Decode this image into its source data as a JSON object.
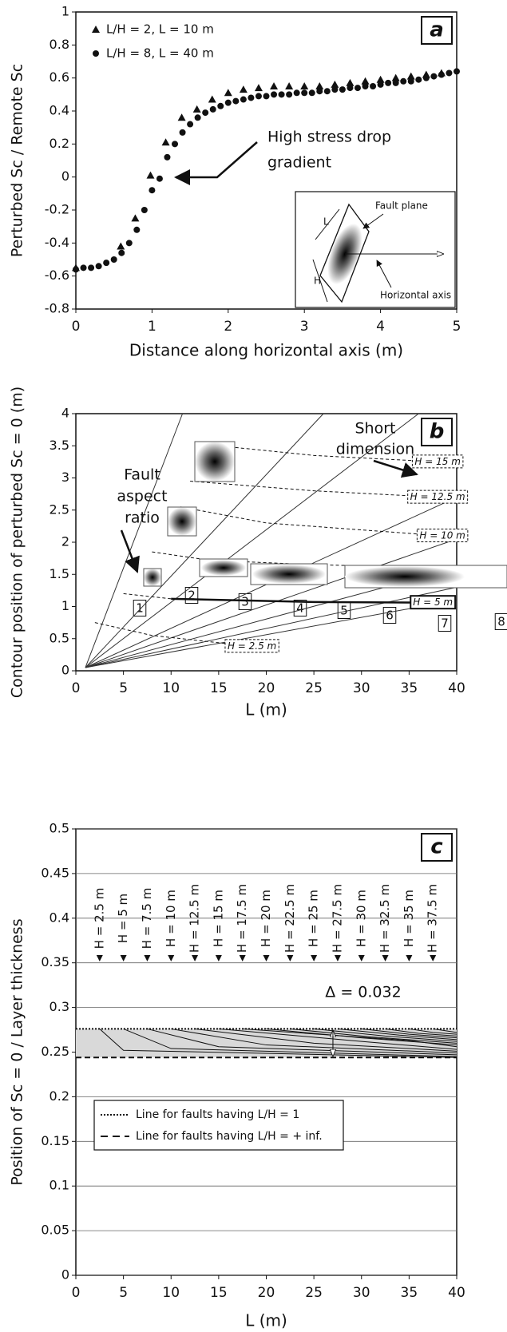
{
  "chart_data": [
    {
      "type": "scatter",
      "panel_label": "a",
      "x_label": "Distance along horizontal axis (m)",
      "y_label": "Perturbed Sc / Remote Sc",
      "xlim": [
        0,
        5
      ],
      "xticks": [
        0,
        1,
        2,
        3,
        4,
        5
      ],
      "ylim": [
        -0.8,
        1
      ],
      "yticks": [
        -0.8,
        -0.6,
        -0.4,
        -0.2,
        0,
        0.2,
        0.4,
        0.6,
        0.8,
        1
      ],
      "grid": false,
      "series": [
        {
          "name": "L/H = 2, L = 10 m",
          "marker": "triangle",
          "color": "#111111",
          "x": [
            0.0,
            0.59,
            0.78,
            0.98,
            1.18,
            1.39,
            1.59,
            1.79,
            2.0,
            2.2,
            2.4,
            2.6,
            2.8,
            3.0,
            3.2,
            3.4,
            3.6,
            3.8,
            4.0,
            4.2,
            4.4,
            4.6,
            4.8
          ],
          "values": [
            -0.55,
            -0.42,
            -0.25,
            0.01,
            0.21,
            0.36,
            0.41,
            0.47,
            0.51,
            0.53,
            0.54,
            0.55,
            0.55,
            0.55,
            0.55,
            0.56,
            0.57,
            0.58,
            0.59,
            0.6,
            0.61,
            0.62,
            0.63
          ]
        },
        {
          "name": "L/H = 8, L = 40 m",
          "marker": "circle",
          "color": "#111111",
          "x": [
            0,
            0.1,
            0.2,
            0.3,
            0.4,
            0.5,
            0.6,
            0.7,
            0.8,
            0.9,
            1.0,
            1.1,
            1.2,
            1.3,
            1.4,
            1.5,
            1.6,
            1.7,
            1.8,
            1.9,
            2.0,
            2.1,
            2.2,
            2.3,
            2.4,
            2.5,
            2.6,
            2.7,
            2.8,
            2.9,
            3.0,
            3.1,
            3.2,
            3.3,
            3.4,
            3.5,
            3.6,
            3.7,
            3.8,
            3.9,
            4.0,
            4.1,
            4.2,
            4.3,
            4.4,
            4.5,
            4.6,
            4.7,
            4.8,
            4.9,
            5.0
          ],
          "values": [
            -0.56,
            -0.55,
            -0.55,
            -0.54,
            -0.52,
            -0.5,
            -0.46,
            -0.4,
            -0.32,
            -0.2,
            -0.08,
            -0.01,
            0.12,
            0.2,
            0.27,
            0.32,
            0.36,
            0.39,
            0.41,
            0.43,
            0.45,
            0.46,
            0.47,
            0.48,
            0.49,
            0.49,
            0.5,
            0.5,
            0.5,
            0.51,
            0.51,
            0.51,
            0.52,
            0.52,
            0.53,
            0.53,
            0.54,
            0.54,
            0.55,
            0.55,
            0.56,
            0.57,
            0.57,
            0.58,
            0.58,
            0.59,
            0.6,
            0.61,
            0.62,
            0.63,
            0.64
          ]
        }
      ],
      "annotation": [
        "High stress drop",
        "gradient"
      ],
      "inset_labels": [
        "Fault plane",
        "Horizontal axis",
        "L",
        "H"
      ]
    },
    {
      "type": "line",
      "panel_label": "b",
      "x_label": "L (m)",
      "y_label": "Contour position of perturbed Sc = 0 (m)",
      "xlim": [
        0,
        40
      ],
      "xticks": [
        0,
        5,
        10,
        15,
        20,
        25,
        30,
        35,
        40
      ],
      "ylim": [
        0,
        4
      ],
      "yticks": [
        0,
        0.5,
        1,
        1.5,
        2,
        2.5,
        3,
        3.5,
        4
      ],
      "grid": false,
      "series": [
        {
          "name": "1",
          "color": "#333333",
          "x": [
            1,
            11.2
          ],
          "values": [
            0.05,
            4
          ]
        },
        {
          "name": "2",
          "color": "#333333",
          "x": [
            1,
            26
          ],
          "values": [
            0.05,
            4
          ]
        },
        {
          "name": "3",
          "color": "#333333",
          "x": [
            1,
            36
          ],
          "values": [
            0.05,
            4
          ]
        },
        {
          "name": "4",
          "color": "#333333",
          "x": [
            1,
            40
          ],
          "values": [
            0.05,
            2.7
          ]
        },
        {
          "name": "5",
          "color": "#333333",
          "x": [
            1,
            40
          ],
          "values": [
            0.05,
            2.05
          ]
        },
        {
          "name": "6",
          "color": "#333333",
          "x": [
            1,
            40
          ],
          "values": [
            0.05,
            1.6
          ]
        },
        {
          "name": "7",
          "color": "#333333",
          "x": [
            1,
            40
          ],
          "values": [
            0.05,
            1.3
          ]
        },
        {
          "name": "8",
          "color": "#333333",
          "x": [
            1,
            40
          ],
          "values": [
            0.05,
            1.1
          ]
        }
      ],
      "contours": [
        {
          "label": "H = 2.5 m",
          "style": "dashed",
          "x": [
            2,
            8,
            18.5
          ],
          "values": [
            0.75,
            0.55,
            0.38
          ]
        },
        {
          "style": "dashed",
          "x": [
            5,
            10
          ],
          "values": [
            1.2,
            1.12
          ]
        },
        {
          "label": "H = 5 m",
          "style": "solid",
          "x": [
            10,
            25,
            37.5
          ],
          "values": [
            1.12,
            1.07,
            1.06
          ]
        },
        {
          "style": "dashed",
          "x": [
            8,
            14,
            25,
            40
          ],
          "values": [
            1.85,
            1.72,
            1.65,
            1.6
          ]
        },
        {
          "label": "H = 10 m",
          "style": "dashed",
          "x": [
            11,
            20,
            38.5
          ],
          "values": [
            2.55,
            2.3,
            2.1
          ]
        },
        {
          "label": "H = 12.5 m",
          "style": "dashed",
          "x": [
            12,
            25,
            38
          ],
          "values": [
            2.95,
            2.8,
            2.7
          ]
        },
        {
          "label": "H = 15 m",
          "style": "dashed",
          "x": [
            15,
            25,
            38
          ],
          "values": [
            3.5,
            3.35,
            3.25
          ]
        }
      ],
      "annotations": [
        [
          "Short",
          "dimension"
        ],
        [
          "Fault",
          "aspect",
          "ratio"
        ]
      ]
    },
    {
      "type": "line",
      "panel_label": "c",
      "x_label": "L (m)",
      "y_label": "Position of Sc = 0 / Layer thickness",
      "xlim": [
        0,
        40
      ],
      "xticks": [
        0,
        5,
        10,
        15,
        20,
        25,
        30,
        35,
        40
      ],
      "ylim": [
        0,
        0.5
      ],
      "yticks": [
        0,
        0.05,
        0.1,
        0.15,
        0.2,
        0.25,
        0.3,
        0.35,
        0.4,
        0.45,
        0.5
      ],
      "grid": true,
      "curves": [
        {
          "name": "H = 2.5 m",
          "x": [
            2.5,
            5,
            40
          ],
          "values": [
            0.276,
            0.252,
            0.244
          ]
        },
        {
          "name": "H = 5 m",
          "x": [
            5,
            10,
            40
          ],
          "values": [
            0.276,
            0.254,
            0.245
          ]
        },
        {
          "name": "H = 7.5 m",
          "x": [
            7.5,
            15,
            40
          ],
          "values": [
            0.276,
            0.256,
            0.247
          ]
        },
        {
          "name": "H = 10 m",
          "x": [
            10,
            20,
            40
          ],
          "values": [
            0.276,
            0.258,
            0.249
          ]
        },
        {
          "name": "H = 12.5 m",
          "x": [
            12.5,
            25,
            40
          ],
          "values": [
            0.276,
            0.26,
            0.251
          ]
        },
        {
          "name": "H = 15 m",
          "x": [
            15,
            30,
            40
          ],
          "values": [
            0.276,
            0.262,
            0.253
          ]
        },
        {
          "name": "H = 17.5 m",
          "x": [
            17.5,
            35,
            40
          ],
          "values": [
            0.276,
            0.263,
            0.256
          ]
        },
        {
          "name": "H = 20 m",
          "x": [
            20,
            30,
            40
          ],
          "values": [
            0.276,
            0.266,
            0.258
          ]
        },
        {
          "name": "H = 22.5 m",
          "x": [
            22.5,
            31,
            40
          ],
          "values": [
            0.276,
            0.267,
            0.26
          ]
        },
        {
          "name": "H = 25 m",
          "x": [
            25,
            32.5,
            40
          ],
          "values": [
            0.276,
            0.268,
            0.262
          ]
        },
        {
          "name": "H = 27.5 m",
          "x": [
            27.5,
            34,
            40
          ],
          "values": [
            0.276,
            0.269,
            0.264
          ]
        },
        {
          "name": "H = 30 m",
          "x": [
            30,
            35,
            40
          ],
          "values": [
            0.276,
            0.27,
            0.266
          ]
        },
        {
          "name": "H = 32.5 m",
          "x": [
            32.5,
            36,
            40
          ],
          "values": [
            0.276,
            0.271,
            0.268
          ]
        },
        {
          "name": "H = 35 m",
          "x": [
            35,
            37.5,
            40
          ],
          "values": [
            0.276,
            0.272,
            0.27
          ]
        },
        {
          "name": "H = 37.5 m",
          "x": [
            37.5,
            38.75,
            40
          ],
          "values": [
            0.276,
            0.274,
            0.272
          ]
        }
      ],
      "reference_lines": [
        {
          "name": "Line for faults having L/H = 1",
          "style": "dotted",
          "value": 0.276
        },
        {
          "name": "Line for faults having L/H = + inf.",
          "style": "dashed",
          "value": 0.244
        }
      ],
      "annotations": [
        "Δ = 0.032"
      ]
    }
  ]
}
